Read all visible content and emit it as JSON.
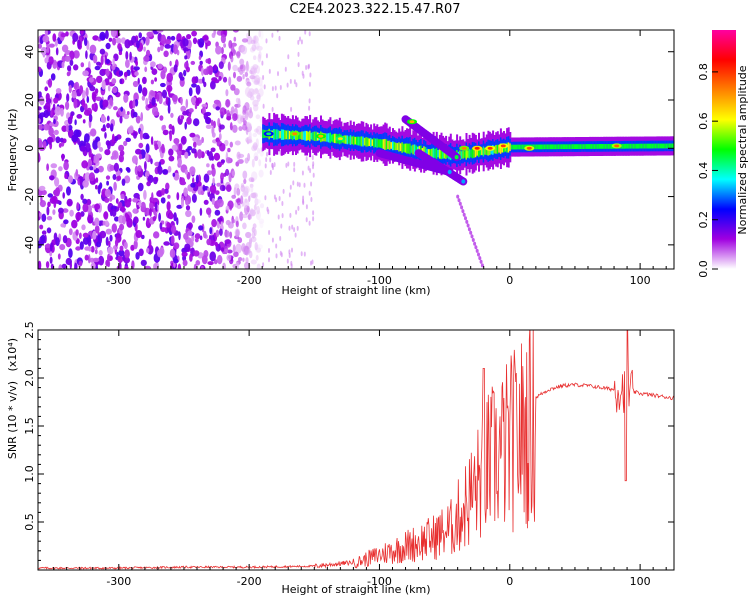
{
  "title": "C2E4.2023.322.15.47.R07",
  "chart_data": [
    {
      "type": "heatmap",
      "xlabel": "Height of straight line (km)",
      "ylabel": "Frequency (Hz)",
      "xlim": [
        -362,
        126
      ],
      "ylim": [
        -50,
        49
      ],
      "x_ticks": [
        -300,
        -200,
        -100,
        0,
        100
      ],
      "y_ticks": [
        -40,
        -20,
        0,
        20,
        40
      ],
      "colorbar": {
        "label": "Normalized spectral amplitude",
        "range": [
          0.0,
          0.97
        ],
        "ticks": [
          0.0,
          0.2,
          0.4,
          0.6,
          0.8
        ],
        "stops": [
          "#ffffff",
          "#a000e0",
          "#0000ff",
          "#00ffff",
          "#00ff00",
          "#ffff00",
          "#ff8000",
          "#ff0000",
          "#ff00a0"
        ]
      },
      "features": [
        {
          "x_range": [
            -362,
            -190
          ],
          "y_range": [
            -50,
            49
          ],
          "amplitude": 0.1,
          "note": "scattered noise"
        },
        {
          "x_range": [
            -190,
            126
          ],
          "center_hz": [
            [
              -190,
              6
            ],
            [
              -150,
              5
            ],
            [
              -100,
              2
            ],
            [
              -60,
              -2
            ],
            [
              -40,
              -3
            ],
            [
              0,
              0.5
            ],
            [
              126,
              1
            ]
          ],
          "amplitude": 0.55
        }
      ]
    },
    {
      "type": "line",
      "xlabel": "Height of straight line (km)",
      "ylabel": "SNR (10 * v/v)",
      "y_multiplier": "(x10⁴)",
      "xlim": [
        -362,
        126
      ],
      "ylim": [
        0,
        2.5
      ],
      "x_ticks": [
        -300,
        -200,
        -100,
        0,
        100
      ],
      "y_ticks": [
        0.5,
        1.0,
        1.5,
        2.0,
        2.5
      ],
      "series": [
        {
          "color": "#e83030",
          "x": [
            -362,
            -300,
            -250,
            -200,
            -150,
            -120,
            -100,
            -80,
            -60,
            -45,
            -35,
            -25,
            -20,
            -10,
            0,
            10,
            20,
            30,
            40,
            50,
            60,
            70,
            80,
            85,
            90,
            100,
            126
          ],
          "y": [
            0.02,
            0.02,
            0.03,
            0.03,
            0.04,
            0.08,
            0.18,
            0.28,
            0.38,
            0.5,
            0.75,
            1.0,
            1.2,
            1.35,
            1.5,
            1.65,
            1.8,
            1.88,
            1.92,
            1.93,
            1.92,
            1.9,
            1.88,
            1.9,
            1.87,
            1.84,
            1.79
          ]
        }
      ]
    }
  ]
}
